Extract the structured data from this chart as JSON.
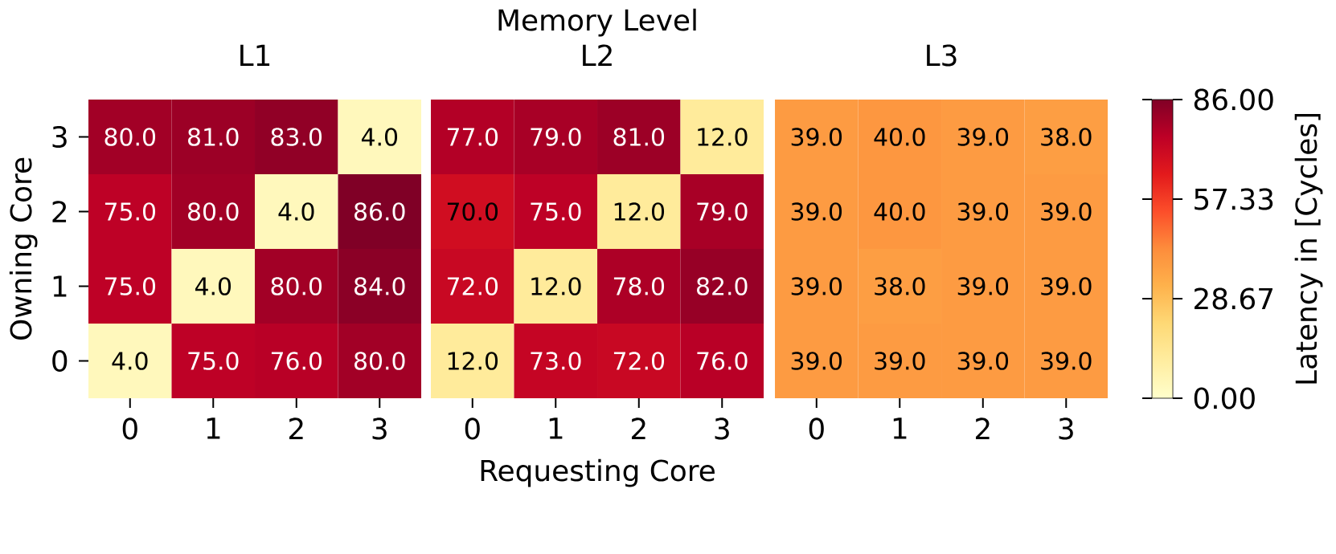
{
  "chart_data": [
    {
      "type": "heatmap",
      "subtitle": "L1",
      "ylabel": "Owning Core",
      "categories": [
        "0",
        "1",
        "2",
        "3"
      ],
      "y_categories": [
        "3",
        "2",
        "1",
        "0"
      ],
      "cells": [
        [
          80.0,
          81.0,
          83.0,
          4.0
        ],
        [
          75.0,
          80.0,
          4.0,
          86.0
        ],
        [
          75.0,
          4.0,
          80.0,
          84.0
        ],
        [
          4.0,
          75.0,
          76.0,
          80.0
        ]
      ],
      "cell_labels": [
        [
          "80.0",
          "81.0",
          "83.0",
          "4.0"
        ],
        [
          "75.0",
          "80.0",
          "4.0",
          "86.0"
        ],
        [
          "75.0",
          "4.0",
          "80.0",
          "84.0"
        ],
        [
          "4.0",
          "75.0",
          "76.0",
          "80.0"
        ]
      ]
    },
    {
      "type": "heatmap",
      "title": "Memory Level",
      "subtitle": "L2",
      "xlabel": "Requesting Core",
      "tick_labels": "x",
      "categories": [
        "0",
        "1",
        "2",
        "3"
      ],
      "y_categories": [
        "3",
        "2",
        "1",
        "0"
      ],
      "cells": [
        [
          77.0,
          79.0,
          81.0,
          12.0
        ],
        [
          70.0,
          75.0,
          12.0,
          79.0
        ],
        [
          72.0,
          12.0,
          78.0,
          82.0
        ],
        [
          12.0,
          73.0,
          72.0,
          76.0
        ]
      ],
      "cell_labels": [
        [
          "77.0",
          "79.0",
          "81.0",
          "12.0"
        ],
        [
          "70.0",
          "75.0",
          "12.0",
          "79.0"
        ],
        [
          "72.0",
          "12.0",
          "78.0",
          "82.0"
        ],
        [
          "12.0",
          "73.0",
          "72.0",
          "76.0"
        ]
      ]
    },
    {
      "type": "heatmap",
      "subtitle": "L3",
      "tick_labels": "x",
      "categories": [
        "0",
        "1",
        "2",
        "3"
      ],
      "y_categories": [
        "3",
        "2",
        "1",
        "0"
      ],
      "cells": [
        [
          39.0,
          40.0,
          39.0,
          38.0
        ],
        [
          39.0,
          40.0,
          39.0,
          39.0
        ],
        [
          39.0,
          38.0,
          39.0,
          39.0
        ],
        [
          39.0,
          39.0,
          39.0,
          39.0
        ]
      ],
      "cell_labels": [
        [
          "39.0",
          "40.0",
          "39.0",
          "38.0"
        ],
        [
          "39.0",
          "40.0",
          "39.0",
          "39.0"
        ],
        [
          "39.0",
          "38.0",
          "39.0",
          "39.0"
        ],
        [
          "39.0",
          "39.0",
          "39.0",
          "39.0"
        ]
      ],
      "clabel": "Latency in [Cycles]",
      "clim": [
        0,
        86
      ],
      "cticks": [
        {
          "value": 0,
          "label": "0.00"
        },
        {
          "value": 28.67,
          "label": "28.67"
        },
        {
          "value": 57.33,
          "label": "57.33"
        },
        {
          "value": 86,
          "label": "86.00"
        }
      ]
    }
  ]
}
